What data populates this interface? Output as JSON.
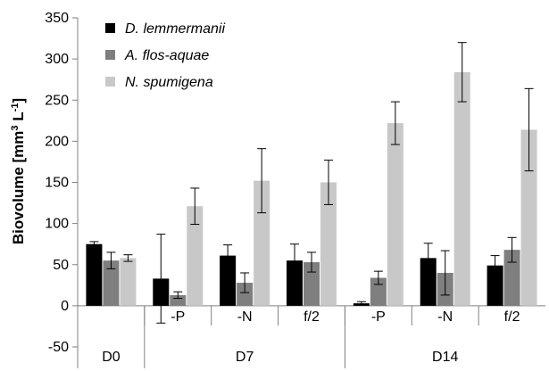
{
  "chart_data": {
    "type": "bar",
    "ylabel": "Biovolume [mm³ L⁻¹]",
    "ylabel_parts": {
      "main": "Biovolume [mm",
      "sup1": "3",
      "mid": " L",
      "sup2": "-1",
      "end": "]"
    },
    "ylim": [
      -50,
      350
    ],
    "yticks": [
      -50,
      0,
      50,
      100,
      150,
      200,
      250,
      300,
      350
    ],
    "ytick_labels": [
      "-50",
      "0",
      "50",
      "100",
      "150",
      "200",
      "250",
      "300",
      "350"
    ],
    "categories": [
      "D0",
      "-P",
      "-N",
      "f/2",
      "-P",
      "-N",
      "f/2"
    ],
    "groups": [
      {
        "label": "D0",
        "span": [
          0,
          0
        ]
      },
      {
        "label": "D7",
        "span": [
          1,
          3
        ]
      },
      {
        "label": "D14",
        "span": [
          4,
          6
        ]
      }
    ],
    "legend_position": "top-left",
    "grid": false,
    "series": [
      {
        "name": "D. lemmermanii",
        "color": "#000000",
        "values": [
          75,
          33,
          61,
          55,
          3,
          58,
          49
        ],
        "errors": [
          3,
          54,
          13,
          20,
          2,
          18,
          12
        ]
      },
      {
        "name": "A. flos-aquae",
        "color": "#7f7f7f",
        "values": [
          55,
          13,
          28,
          53,
          34,
          40,
          68
        ],
        "errors": [
          10,
          4,
          12,
          12,
          8,
          27,
          15
        ]
      },
      {
        "name": "N. spumigena",
        "color": "#c8c8c8",
        "values": [
          58,
          121,
          152,
          150,
          222,
          284,
          214
        ],
        "errors": [
          4,
          22,
          39,
          27,
          26,
          36,
          50
        ]
      }
    ]
  }
}
